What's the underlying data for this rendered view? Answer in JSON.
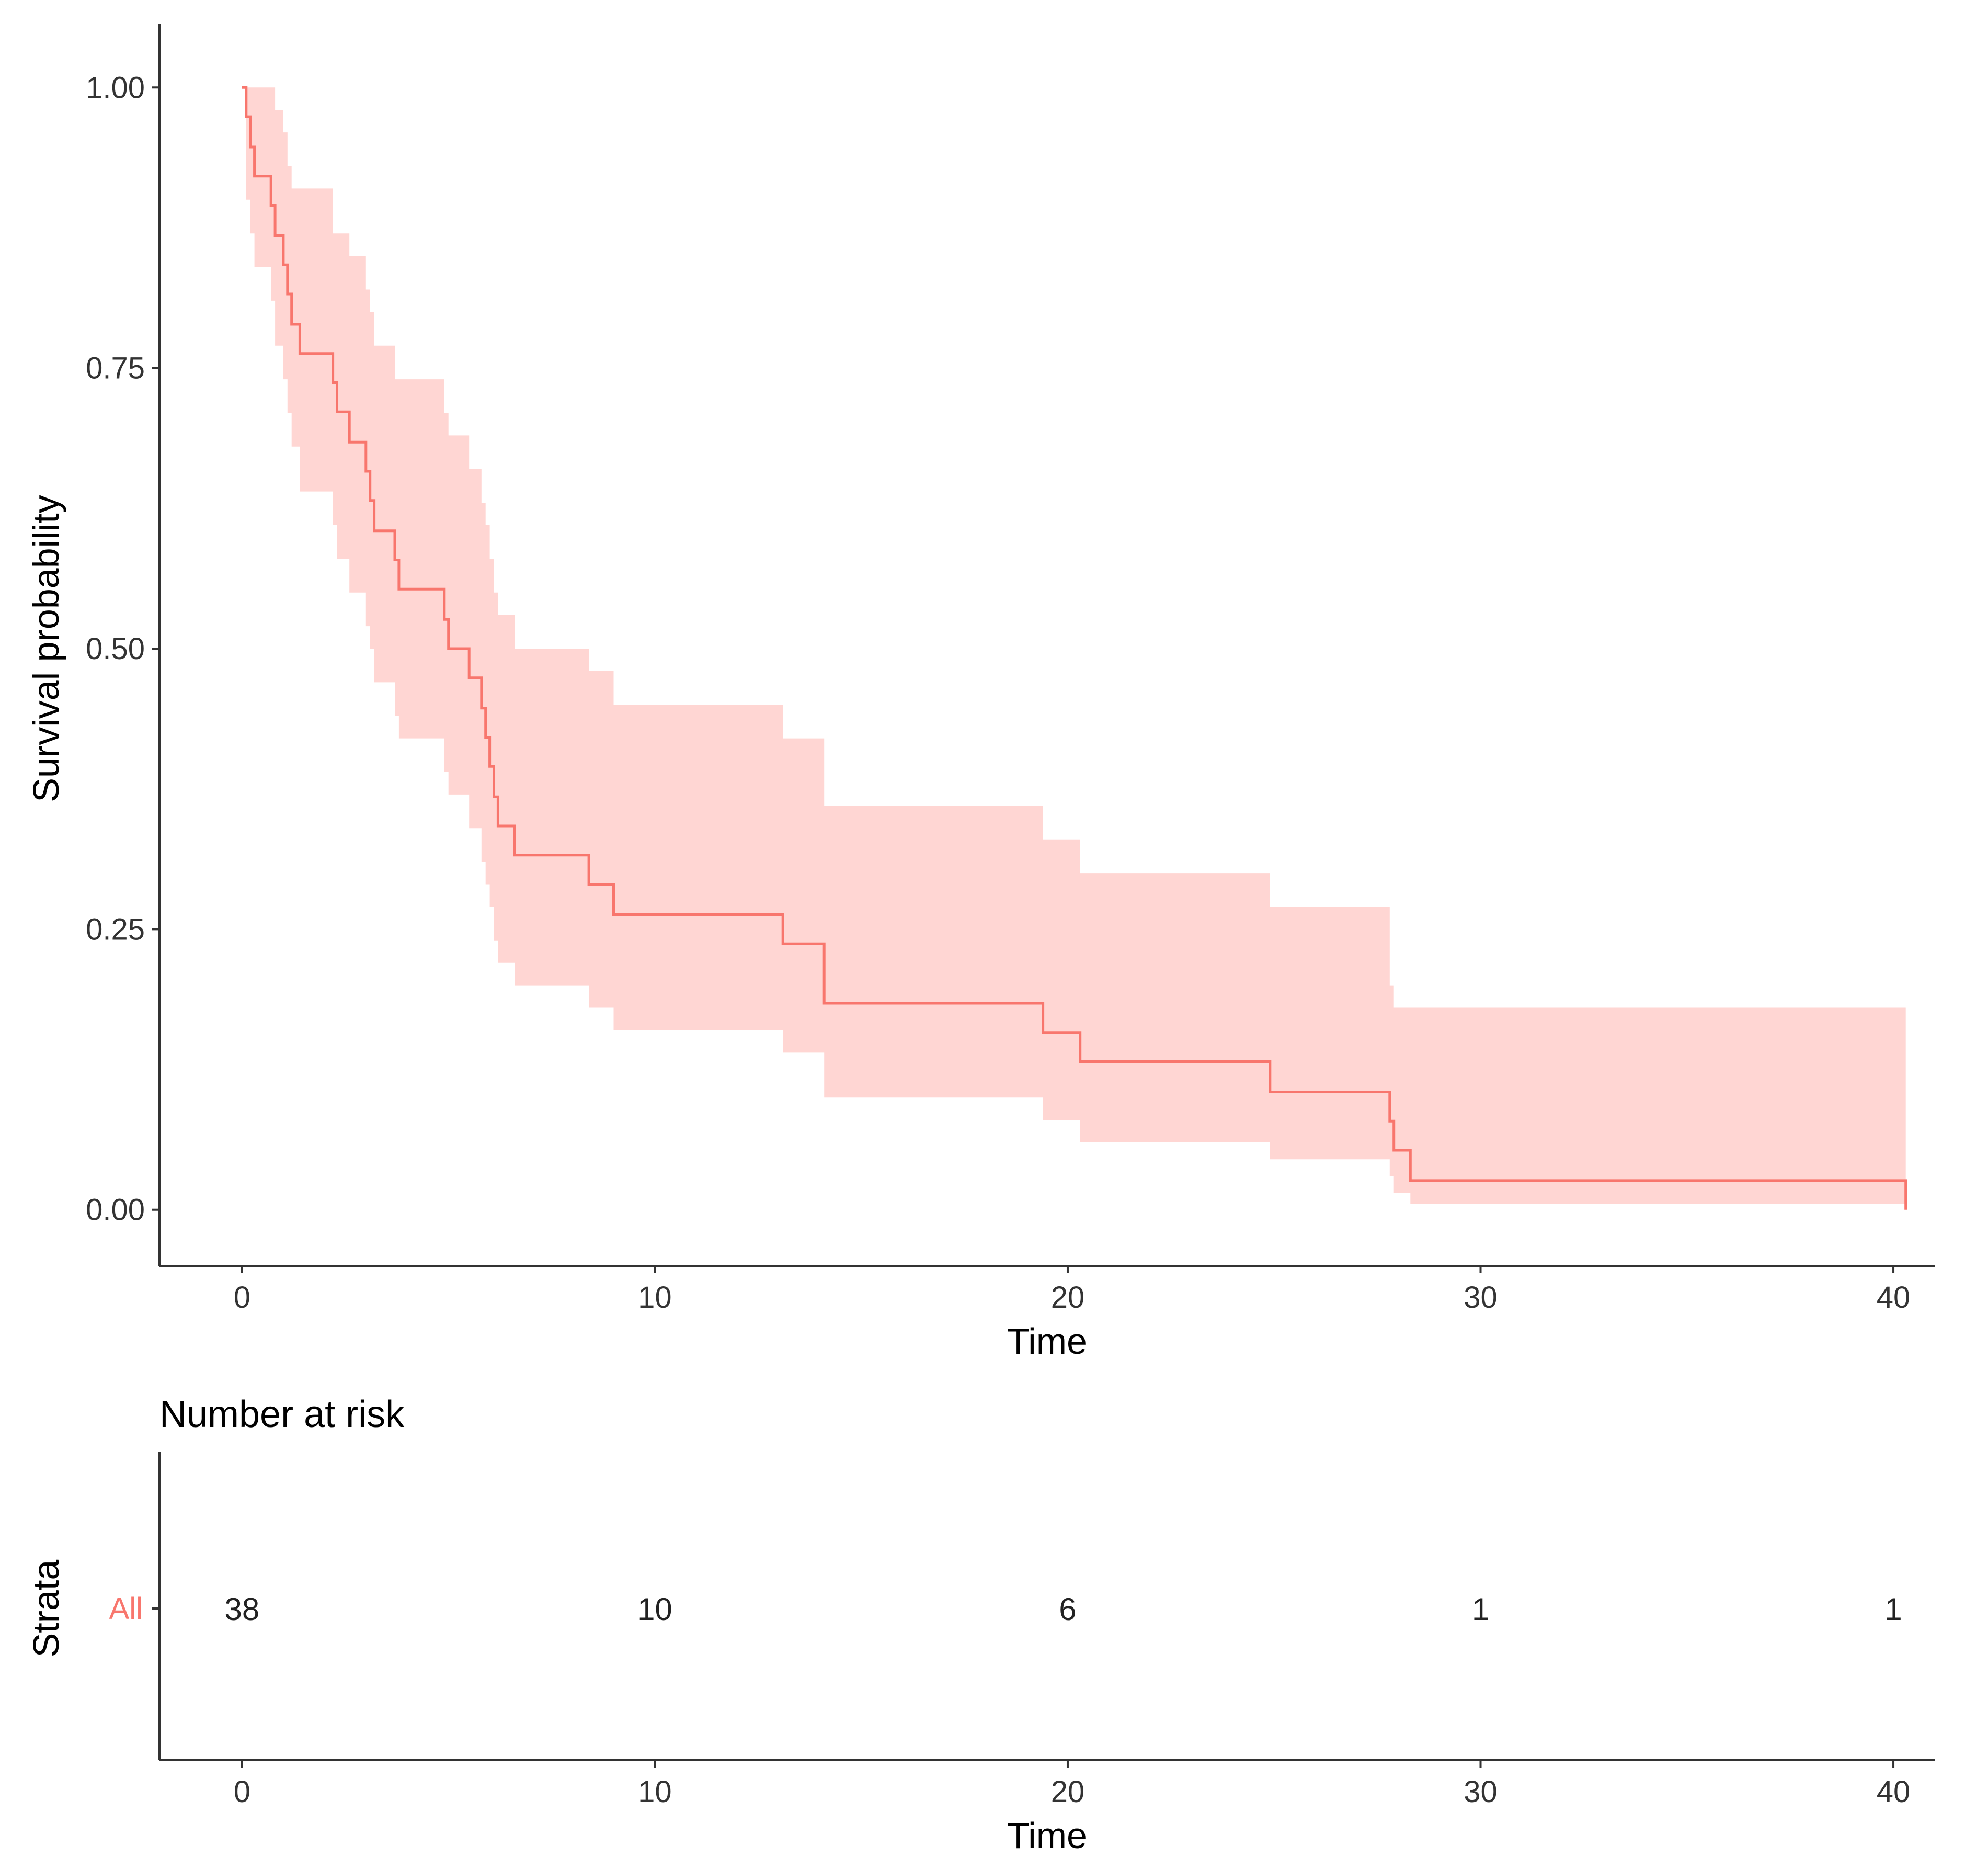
{
  "chart_data": [
    {
      "type": "line",
      "subtype": "kaplan-meier-step",
      "title": "",
      "xlabel": "Time",
      "ylabel": "Survival probability",
      "xlim": [
        -2,
        41
      ],
      "ylim": [
        -0.05,
        1.05
      ],
      "x_ticks": [
        0,
        10,
        20,
        30,
        40
      ],
      "x_tick_labels": [
        "0",
        "10",
        "20",
        "30",
        "40"
      ],
      "y_ticks": [
        0,
        0.25,
        0.5,
        0.75,
        1.0
      ],
      "y_tick_labels": [
        "0.00",
        "0.25",
        "0.50",
        "0.75",
        "1.00"
      ],
      "grid": false,
      "series": [
        {
          "name": "All",
          "color": "#F8766D",
          "band_color": "#FFD6D3",
          "steps": [
            {
              "t": 0,
              "s": 1.0,
              "lo": 1.0,
              "hi": 1.0
            },
            {
              "t": 0.1,
              "s": 0.974,
              "lo": 0.9,
              "hi": 1.0
            },
            {
              "t": 0.2,
              "s": 0.947,
              "lo": 0.87,
              "hi": 1.0
            },
            {
              "t": 0.3,
              "s": 0.921,
              "lo": 0.84,
              "hi": 1.0
            },
            {
              "t": 0.7,
              "s": 0.895,
              "lo": 0.81,
              "hi": 1.0
            },
            {
              "t": 0.8,
              "s": 0.868,
              "lo": 0.77,
              "hi": 0.98
            },
            {
              "t": 1.0,
              "s": 0.842,
              "lo": 0.74,
              "hi": 0.96
            },
            {
              "t": 1.1,
              "s": 0.816,
              "lo": 0.71,
              "hi": 0.93
            },
            {
              "t": 1.2,
              "s": 0.789,
              "lo": 0.68,
              "hi": 0.91
            },
            {
              "t": 1.4,
              "s": 0.763,
              "lo": 0.64,
              "hi": 0.91
            },
            {
              "t": 2.2,
              "s": 0.737,
              "lo": 0.61,
              "hi": 0.87
            },
            {
              "t": 2.3,
              "s": 0.711,
              "lo": 0.58,
              "hi": 0.87
            },
            {
              "t": 2.6,
              "s": 0.684,
              "lo": 0.55,
              "hi": 0.85
            },
            {
              "t": 3.0,
              "s": 0.658,
              "lo": 0.52,
              "hi": 0.82
            },
            {
              "t": 3.1,
              "s": 0.632,
              "lo": 0.5,
              "hi": 0.8
            },
            {
              "t": 3.2,
              "s": 0.605,
              "lo": 0.47,
              "hi": 0.77
            },
            {
              "t": 3.7,
              "s": 0.579,
              "lo": 0.44,
              "hi": 0.74
            },
            {
              "t": 3.8,
              "s": 0.553,
              "lo": 0.42,
              "hi": 0.74
            },
            {
              "t": 4.9,
              "s": 0.526,
              "lo": 0.39,
              "hi": 0.71
            },
            {
              "t": 5.0,
              "s": 0.5,
              "lo": 0.37,
              "hi": 0.69
            },
            {
              "t": 5.5,
              "s": 0.474,
              "lo": 0.34,
              "hi": 0.66
            },
            {
              "t": 5.8,
              "s": 0.447,
              "lo": 0.31,
              "hi": 0.63
            },
            {
              "t": 5.9,
              "s": 0.421,
              "lo": 0.29,
              "hi": 0.61
            },
            {
              "t": 6.0,
              "s": 0.395,
              "lo": 0.27,
              "hi": 0.58
            },
            {
              "t": 6.1,
              "s": 0.368,
              "lo": 0.24,
              "hi": 0.55
            },
            {
              "t": 6.2,
              "s": 0.342,
              "lo": 0.22,
              "hi": 0.53
            },
            {
              "t": 6.6,
              "s": 0.316,
              "lo": 0.2,
              "hi": 0.5
            },
            {
              "t": 8.4,
              "s": 0.29,
              "lo": 0.18,
              "hi": 0.48
            },
            {
              "t": 9.0,
              "s": 0.263,
              "lo": 0.16,
              "hi": 0.45
            },
            {
              "t": 13.1,
              "s": 0.237,
              "lo": 0.14,
              "hi": 0.42
            },
            {
              "t": 14.1,
              "s": 0.184,
              "lo": 0.1,
              "hi": 0.36
            },
            {
              "t": 19.4,
              "s": 0.158,
              "lo": 0.08,
              "hi": 0.33
            },
            {
              "t": 20.3,
              "s": 0.132,
              "lo": 0.06,
              "hi": 0.3
            },
            {
              "t": 24.9,
              "s": 0.105,
              "lo": 0.045,
              "hi": 0.27
            },
            {
              "t": 27.8,
              "s": 0.079,
              "lo": 0.03,
              "hi": 0.2
            },
            {
              "t": 27.9,
              "s": 0.053,
              "lo": 0.015,
              "hi": 0.18
            },
            {
              "t": 28.3,
              "s": 0.026,
              "lo": 0.005,
              "hi": 0.18
            },
            {
              "t": 40.3,
              "s": 0.0,
              "lo": 0.0,
              "hi": 0.18
            }
          ]
        }
      ]
    },
    {
      "type": "table",
      "title": "Number at risk",
      "xlabel": "Time",
      "ylabel": "Strata",
      "xlim": [
        -2,
        41
      ],
      "x_ticks": [
        0,
        10,
        20,
        30,
        40
      ],
      "x_tick_labels": [
        "0",
        "10",
        "20",
        "30",
        "40"
      ],
      "rows": [
        {
          "stratum": "All",
          "color": "#F8766D",
          "times": [
            0,
            10,
            20,
            30,
            40
          ],
          "values": [
            "38",
            "10",
            "6",
            "1",
            "1"
          ]
        }
      ]
    }
  ]
}
